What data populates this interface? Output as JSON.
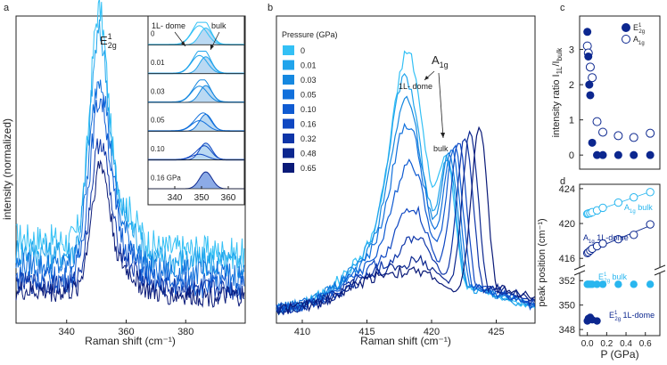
{
  "colors": {
    "light": "#29b6ef",
    "shades": [
      "#33c0f5",
      "#20a4ec",
      "#1588e0",
      "#1170dc",
      "#0f5bd2",
      "#0f47c2",
      "#0e35a8",
      "#0c278f",
      "#0a1a78"
    ],
    "fill": "#a9cff0",
    "axis": "#222222"
  },
  "chart_data": [
    {
      "panel": "a",
      "type": "line",
      "title": "E¹2g",
      "peak_label": "E",
      "peak_sup": "1",
      "peak_sub": "2g",
      "xlabel": "Raman shift (cm⁻¹)",
      "ylabel": "intensity (normalized)",
      "xlim": [
        323,
        400
      ],
      "ylim": [
        0,
        1.15
      ],
      "x_ticks": [
        340,
        360,
        380
      ],
      "series": [
        {
          "name": "0",
          "amp": 1.0,
          "center": 350.8,
          "width": 4.2,
          "base": 0.32,
          "noise": 0.06
        },
        {
          "name": "0.01",
          "amp": 0.95,
          "center": 350.9,
          "width": 4.5,
          "base": 0.27,
          "noise": 0.06
        },
        {
          "name": "0.03",
          "amp": 0.82,
          "center": 351.0,
          "width": 4.8,
          "base": 0.22,
          "noise": 0.05
        },
        {
          "name": "0.05",
          "amp": 0.78,
          "center": 351.1,
          "width": 4.8,
          "base": 0.17,
          "noise": 0.05
        },
        {
          "name": "0.10",
          "amp": 0.62,
          "center": 351.2,
          "width": 4.5,
          "base": 0.15,
          "noise": 0.04
        },
        {
          "name": "0.16",
          "amp": 0.55,
          "center": 351.3,
          "width": 4.4,
          "base": 0.12,
          "noise": 0.04
        }
      ],
      "inset": {
        "xlim": [
          330,
          366
        ],
        "x_ticks": [
          340,
          350,
          360
        ],
        "labels": [
          "0",
          "0.01",
          "0.03",
          "0.05",
          "0.10",
          "0.16 GPa"
        ],
        "dome_center": 349.2,
        "bulk_center": 351.6,
        "dome_amp": [
          1.0,
          0.95,
          0.85,
          0.55,
          0.3,
          0.0
        ],
        "annot_dome": "1L- dome",
        "annot_bulk": "bulk"
      }
    },
    {
      "panel": "b",
      "type": "line",
      "xlabel": "Raman shift (cm⁻¹)",
      "xlim": [
        408,
        428
      ],
      "ylim": [
        0,
        1.15
      ],
      "x_ticks": [
        410,
        415,
        420,
        425
      ],
      "legend_title": "Pressure (GPa)",
      "legend": [
        "0",
        "0.01",
        "0.03",
        "0.05",
        "0.10",
        "0.16",
        "0.32",
        "0.48",
        "0.65"
      ],
      "peak_label": "A",
      "peak_sub": "1g",
      "annot_dome": "1L- dome",
      "annot_bulk": "bulk",
      "series": [
        {
          "name": "0",
          "dome_amp": 1.0,
          "dome_c": 418.2,
          "bulk_c": 421.2,
          "bulk_amp": 0.55
        },
        {
          "name": "0.01",
          "dome_amp": 0.88,
          "dome_c": 418.0,
          "bulk_c": 421.3,
          "bulk_amp": 0.58
        },
        {
          "name": "0.03",
          "dome_amp": 0.78,
          "dome_c": 418.1,
          "bulk_c": 421.4,
          "bulk_amp": 0.62
        },
        {
          "name": "0.05",
          "dome_amp": 0.68,
          "dome_c": 418.2,
          "bulk_c": 421.6,
          "bulk_amp": 0.66
        },
        {
          "name": "0.10",
          "dome_amp": 0.52,
          "dome_c": 418.4,
          "bulk_c": 421.8,
          "bulk_amp": 0.7
        },
        {
          "name": "0.16",
          "dome_amp": 0.32,
          "dome_c": 418.6,
          "bulk_c": 422.1,
          "bulk_amp": 0.74
        },
        {
          "name": "0.32",
          "dome_amp": 0.2,
          "dome_c": 419.0,
          "bulk_c": 422.6,
          "bulk_amp": 0.78
        },
        {
          "name": "0.48",
          "dome_amp": 0.1,
          "dome_c": 419.5,
          "bulk_c": 423.0,
          "bulk_amp": 0.82
        },
        {
          "name": "0.65",
          "dome_amp": 0.05,
          "dome_c": 420.0,
          "bulk_c": 423.7,
          "bulk_amp": 0.86
        }
      ]
    },
    {
      "panel": "c",
      "type": "scatter",
      "ylabel_main": "intensity ratio I",
      "ylabel_sub1": "1L",
      "ylabel_mid": "/I",
      "ylabel_sub2": "bulk",
      "xlim": [
        -0.08,
        0.75
      ],
      "ylim": [
        -0.4,
        3.95
      ],
      "y_ticks": [
        0,
        1,
        2,
        3
      ],
      "legend": [
        {
          "main": "E",
          "sup": "1",
          "sub": "2g",
          "filled": true
        },
        {
          "main": "A",
          "sup": "",
          "sub": "1g",
          "filled": false
        }
      ],
      "E2g": {
        "x": [
          0,
          0.01,
          0.02,
          0.03,
          0.05,
          0.1,
          0.16,
          0.32,
          0.48,
          0.65
        ],
        "y": [
          3.5,
          2.8,
          2.0,
          1.7,
          0.35,
          0.0,
          0.0,
          0.0,
          0.0,
          0.0
        ]
      },
      "A1g": {
        "x": [
          0,
          0.01,
          0.03,
          0.05,
          0.1,
          0.16,
          0.32,
          0.48,
          0.65
        ],
        "y": [
          3.1,
          2.9,
          2.5,
          2.2,
          0.95,
          0.65,
          0.55,
          0.5,
          0.62
        ]
      }
    },
    {
      "panel": "d",
      "type": "scatter",
      "xlabel": "P (GPa)",
      "ylabel": "peak position (cm⁻¹)",
      "xlim": [
        -0.08,
        0.75
      ],
      "x_ticks": [
        0.0,
        0.2,
        0.4,
        0.6
      ],
      "x_tick_labels": [
        "0.0",
        "0.2",
        "0.4",
        "0.6"
      ],
      "upper_ylim": [
        415,
        424.5
      ],
      "upper_ticks": [
        416,
        420,
        424
      ],
      "lower_ylim": [
        347.5,
        352.6
      ],
      "lower_ticks": [
        348,
        350,
        352
      ],
      "A1g_bulk": {
        "label_main": "A",
        "label_sub": "1g",
        "label_tail": " bulk",
        "x": [
          0,
          0.01,
          0.03,
          0.05,
          0.1,
          0.16,
          0.32,
          0.48,
          0.65
        ],
        "y": [
          421.1,
          421.15,
          421.2,
          421.3,
          421.5,
          421.8,
          422.4,
          423.0,
          423.6
        ]
      },
      "A1g_dome": {
        "label_main": "A",
        "label_sub": "1g",
        "label_tail": " 1L-dome",
        "x": [
          0,
          0.01,
          0.03,
          0.05,
          0.1,
          0.16,
          0.32,
          0.48,
          0.65
        ],
        "y": [
          416.6,
          416.7,
          416.9,
          417.1,
          417.4,
          417.7,
          418.2,
          418.7,
          419.9
        ]
      },
      "E2g_bulk": {
        "label_main": "E",
        "label_sup": "1",
        "label_sub": "2g",
        "label_tail": " bulk",
        "x": [
          0,
          0.01,
          0.03,
          0.05,
          0.1,
          0.16,
          0.32,
          0.48,
          0.65
        ],
        "y": [
          351.7,
          351.7,
          351.7,
          351.7,
          351.7,
          351.7,
          351.7,
          351.7,
          351.7
        ]
      },
      "E2g_dome": {
        "label_main": "E",
        "label_sup": "1",
        "label_sub": "2g",
        "label_tail": " 1L-dome",
        "x": [
          0,
          0.01,
          0.03,
          0.05,
          0.1
        ],
        "y": [
          348.7,
          348.9,
          349.0,
          348.8,
          348.7
        ]
      }
    }
  ]
}
